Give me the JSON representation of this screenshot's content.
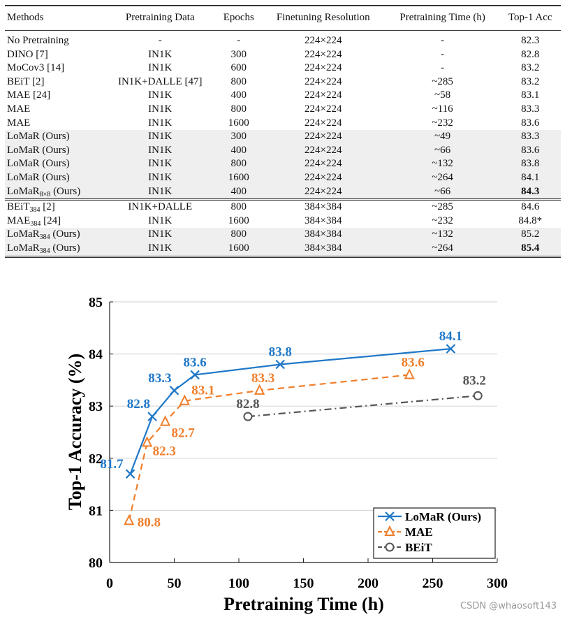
{
  "table": {
    "headers": [
      "Methods",
      "Pretraining Data",
      "Epochs",
      "Finetuning Resolution",
      "Pretraining Time (h)",
      "Top-1 Acc"
    ],
    "rows": [
      {
        "method": "No Pretraining",
        "sub": "",
        "suffix": "",
        "data": "-",
        "epochs": "-",
        "res": "224×224",
        "time": "-",
        "acc": "82.3",
        "bold": false,
        "shade": false
      },
      {
        "method": "DINO [7]",
        "sub": "",
        "suffix": "",
        "data": "IN1K",
        "epochs": "300",
        "res": "224×224",
        "time": "-",
        "acc": "82.8",
        "bold": false,
        "shade": false
      },
      {
        "method": "MoCov3 [14]",
        "sub": "",
        "suffix": "",
        "data": "IN1K",
        "epochs": "600",
        "res": "224×224",
        "time": "-",
        "acc": "83.2",
        "bold": false,
        "shade": false
      },
      {
        "method": "BEiT [2]",
        "sub": "",
        "suffix": "",
        "data": "IN1K+DALLE [47]",
        "epochs": "800",
        "res": "224×224",
        "time": "~285",
        "acc": "83.2",
        "bold": false,
        "shade": false
      },
      {
        "method": "MAE [24]",
        "sub": "",
        "suffix": "",
        "data": "IN1K",
        "epochs": "400",
        "res": "224×224",
        "time": "~58",
        "acc": "83.1",
        "bold": false,
        "shade": false
      },
      {
        "method": "MAE",
        "sub": "",
        "suffix": "",
        "data": "IN1K",
        "epochs": "800",
        "res": "224×224",
        "time": "~116",
        "acc": "83.3",
        "bold": false,
        "shade": false
      },
      {
        "method": "MAE",
        "sub": "",
        "suffix": "",
        "data": "IN1K",
        "epochs": "1600",
        "res": "224×224",
        "time": "~232",
        "acc": "83.6",
        "bold": false,
        "shade": false
      },
      {
        "method": "LoMaR (Ours)",
        "sub": "",
        "suffix": "",
        "data": "IN1K",
        "epochs": "300",
        "res": "224×224",
        "time": "~49",
        "acc": "83.3",
        "bold": false,
        "shade": true
      },
      {
        "method": "LoMaR (Ours)",
        "sub": "",
        "suffix": "",
        "data": "IN1K",
        "epochs": "400",
        "res": "224×224",
        "time": "~66",
        "acc": "83.6",
        "bold": false,
        "shade": true
      },
      {
        "method": "LoMaR (Ours)",
        "sub": "",
        "suffix": "",
        "data": "IN1K",
        "epochs": "800",
        "res": "224×224",
        "time": "~132",
        "acc": "83.8",
        "bold": false,
        "shade": true
      },
      {
        "method": "LoMaR (Ours)",
        "sub": "",
        "suffix": "",
        "data": "IN1K",
        "epochs": "1600",
        "res": "224×224",
        "time": "~264",
        "acc": "84.1",
        "bold": false,
        "shade": true
      },
      {
        "method": "LoMaR",
        "sub": "8×8",
        "suffix": " (Ours)",
        "data": "IN1K",
        "epochs": "400",
        "res": "224×224",
        "time": "~66",
        "acc": "84.3",
        "bold": true,
        "shade": true
      },
      {
        "method": "BEiT",
        "sub": "384",
        "suffix": " [2]",
        "data": "IN1K+DALLE",
        "epochs": "800",
        "res": "384×384",
        "time": "~285",
        "acc": "84.6",
        "bold": false,
        "shade": false
      },
      {
        "method": "MAE",
        "sub": "384",
        "suffix": " [24]",
        "data": "IN1K",
        "epochs": "1600",
        "res": "384×384",
        "time": "~232",
        "acc": "84.8*",
        "bold": false,
        "shade": false
      },
      {
        "method": "LoMaR",
        "sub": "384",
        "suffix": " (Ours)",
        "data": "IN1K",
        "epochs": "800",
        "res": "384×384",
        "time": "~132",
        "acc": "85.2",
        "bold": false,
        "shade": true
      },
      {
        "method": "LoMaR",
        "sub": "384",
        "suffix": " (Ours)",
        "data": "IN1K",
        "epochs": "1600",
        "res": "384×384",
        "time": "~264",
        "acc": "85.4",
        "bold": true,
        "shade": true
      }
    ]
  },
  "chart_data": {
    "type": "line",
    "xlabel": "Pretraining Time (h)",
    "ylabel": "Top-1 Accuracy (%)",
    "xlim": [
      0,
      300
    ],
    "ylim": [
      80,
      85
    ],
    "xticks": [
      "0",
      "50",
      "100",
      "150",
      "200",
      "250",
      "300"
    ],
    "yticks": [
      "80",
      "81",
      "82",
      "83",
      "84",
      "85"
    ],
    "grid": "horizontal",
    "legend": "bottom-right",
    "series": [
      {
        "name": "LoMaR (Ours)",
        "color": "#1f78c8",
        "marker": "x",
        "dash": "solid",
        "x": [
          16,
          33,
          50,
          66,
          132,
          264
        ],
        "y": [
          81.7,
          82.8,
          83.3,
          83.6,
          83.8,
          84.1
        ],
        "labels": [
          "81.7",
          "82.8",
          "83.3",
          "83.6",
          "83.8",
          "84.1"
        ]
      },
      {
        "name": "MAE",
        "color": "#f07e2b",
        "marker": "triangle",
        "dash": "dashed",
        "x": [
          15,
          29,
          43,
          58,
          116,
          232
        ],
        "y": [
          80.8,
          82.3,
          82.7,
          83.1,
          83.3,
          83.6
        ],
        "labels": [
          "80.8",
          "82.3",
          "82.7",
          "83.1",
          "83.3",
          "83.6"
        ]
      },
      {
        "name": "BEiT",
        "color": "#555555",
        "marker": "circle",
        "dash": "dashdot",
        "x": [
          107,
          285
        ],
        "y": [
          82.8,
          83.2
        ],
        "labels": [
          "82.8",
          "83.2"
        ]
      }
    ]
  },
  "watermark": "CSDN @whaosoft143"
}
